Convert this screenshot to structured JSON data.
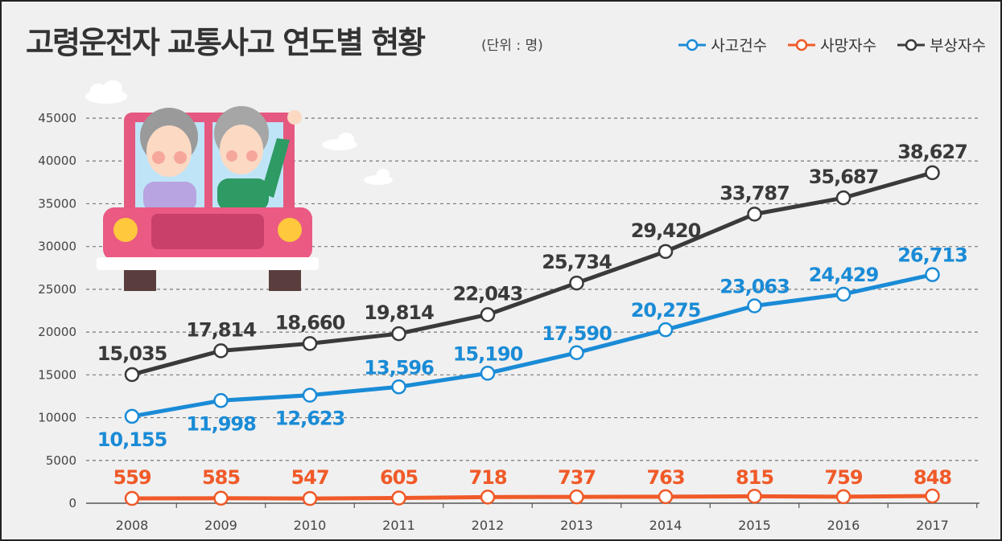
{
  "title": "고령운전자 교통사고 연도별 현황",
  "unit": "(단위 : 명)",
  "colors": {
    "background": "#f0f0f0",
    "grid": "#777777"
  },
  "chart_data": {
    "type": "line",
    "categories": [
      "2008",
      "2009",
      "2010",
      "2011",
      "2012",
      "2013",
      "2014",
      "2015",
      "2016",
      "2017"
    ],
    "ylim": [
      0,
      45000
    ],
    "yticks": [
      0,
      5000,
      10000,
      15000,
      20000,
      25000,
      30000,
      35000,
      40000,
      45000
    ],
    "grid": "horizontal dashed",
    "legend_position": "top-right",
    "series": [
      {
        "name": "사고건수",
        "color": "#1a8bd6",
        "values": [
          10155,
          11998,
          12623,
          13596,
          15190,
          17590,
          20275,
          23063,
          24429,
          26713
        ],
        "labels": [
          "10,155",
          "11,998",
          "12,623",
          "13,596",
          "15,190",
          "17,590",
          "20,275",
          "23,063",
          "24,429",
          "26,713"
        ]
      },
      {
        "name": "사망자수",
        "color": "#f05a28",
        "values": [
          559,
          585,
          547,
          605,
          718,
          737,
          763,
          815,
          759,
          848
        ],
        "labels": [
          "559",
          "585",
          "547",
          "605",
          "718",
          "737",
          "763",
          "815",
          "759",
          "848"
        ]
      },
      {
        "name": "부상자수",
        "color": "#3a3a3a",
        "values": [
          15035,
          17814,
          18660,
          19814,
          22043,
          25734,
          29420,
          33787,
          35687,
          38627
        ],
        "labels": [
          "15,035",
          "17,814",
          "18,660",
          "19,814",
          "22,043",
          "25,734",
          "29,420",
          "33,787",
          "35,687",
          "38,627"
        ]
      }
    ]
  }
}
